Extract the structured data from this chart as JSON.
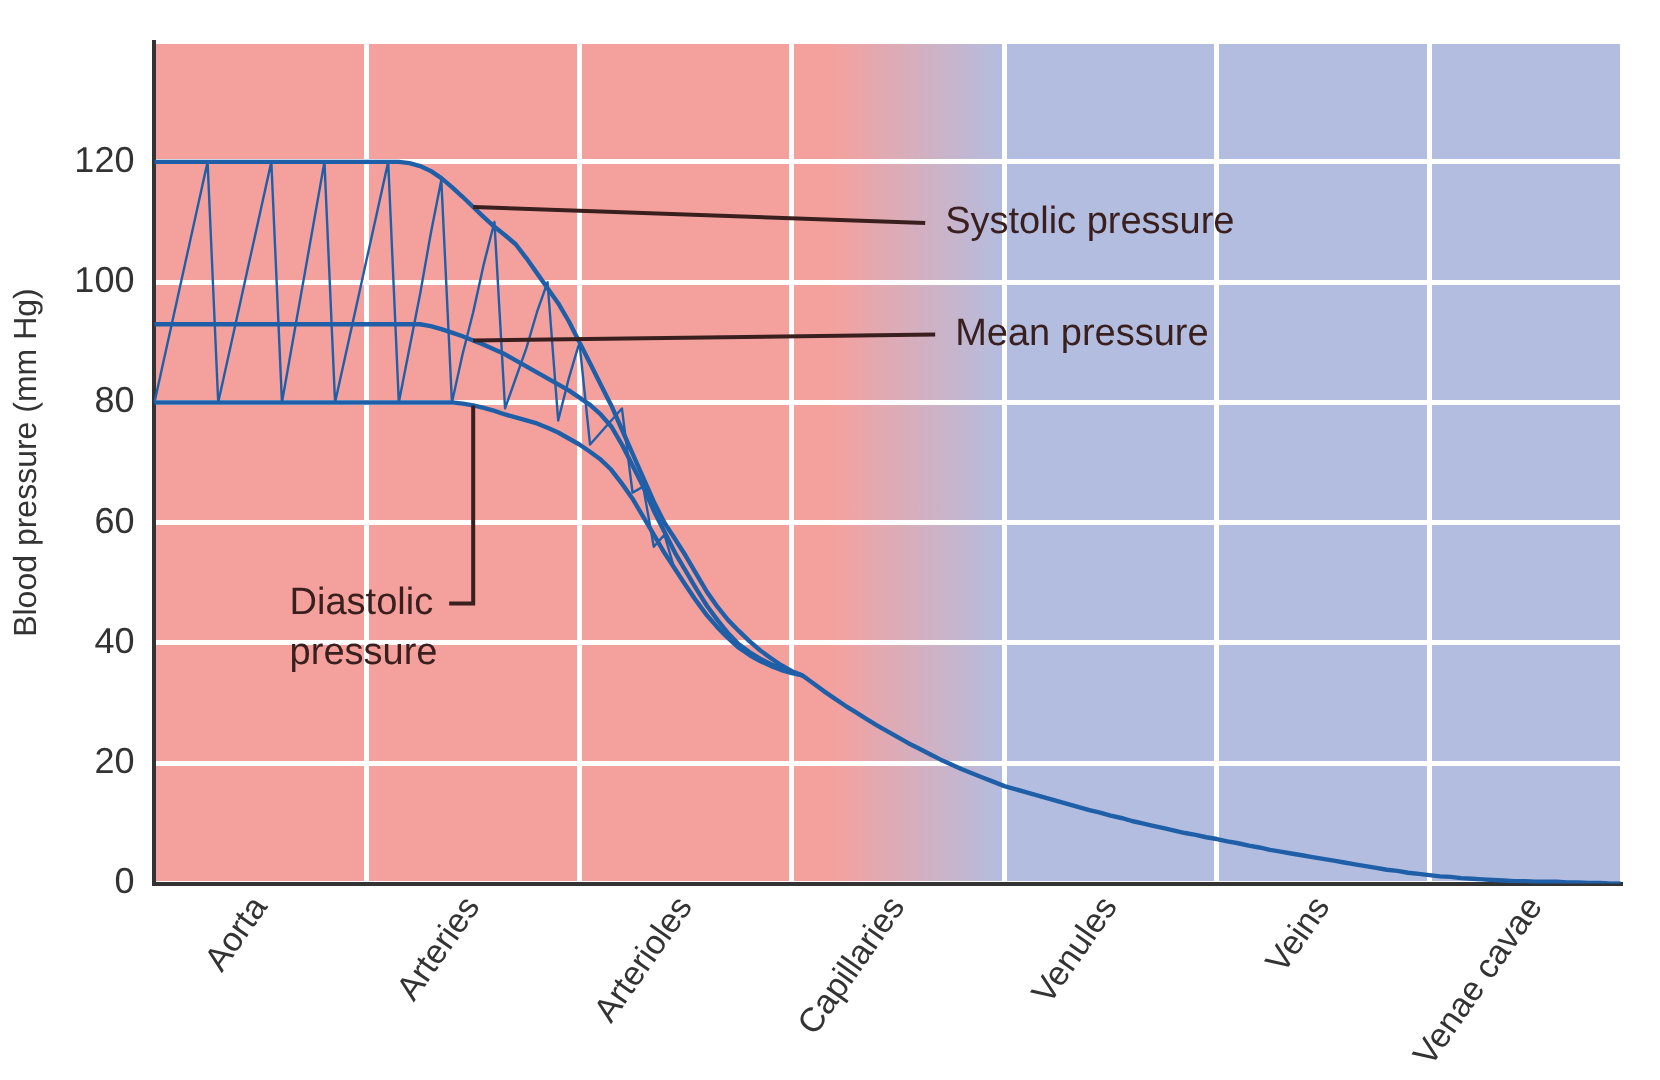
{
  "chart_data": {
    "type": "line",
    "ylabel": "Blood pressure (mm Hg)",
    "categories": [
      null,
      null,
      null,
      null,
      null,
      null,
      null,
      null,
      null,
      null,
      "Aorta",
      null,
      null,
      null,
      null,
      null,
      null,
      null,
      null,
      null,
      null,
      null,
      null,
      null,
      null,
      null,
      null,
      null,
      null,
      null,
      "Arteries",
      null,
      null,
      null,
      null,
      null,
      null,
      null,
      null,
      null,
      null,
      null,
      null,
      null,
      null,
      null,
      null,
      null,
      null,
      null,
      "Arterioles",
      null,
      null,
      null,
      null,
      null,
      null,
      null,
      null,
      null,
      null,
      null,
      null,
      null,
      null,
      null,
      null,
      null,
      null,
      null,
      "Capillaries",
      null,
      null,
      null,
      null,
      null,
      null,
      null,
      null,
      null,
      null,
      null,
      null,
      null,
      null,
      null,
      null,
      null,
      null,
      null,
      "Venules",
      null,
      null,
      null,
      null,
      null,
      null,
      null,
      null,
      null,
      null,
      null,
      null,
      null,
      null,
      null,
      null,
      null,
      null,
      null,
      "Veins",
      null,
      null,
      null,
      null,
      null,
      null,
      null,
      null,
      null,
      null,
      null,
      null,
      null,
      null,
      null,
      null,
      null,
      null,
      null,
      "Venae cavae",
      null,
      null,
      null,
      null,
      null,
      null,
      null,
      null
    ],
    "ylim": [
      0,
      140
    ],
    "yticks": [
      0,
      20,
      40,
      60,
      80,
      100,
      120,
      {
        "value": 140,
        "label": null
      }
    ],
    "grid": true,
    "legend": false,
    "marker": "none",
    "line_style": "solid",
    "series": [
      {
        "color": "#1f5fa8",
        "values": [
          120,
          120,
          120,
          120,
          120,
          120,
          120,
          120,
          120,
          120,
          120,
          120,
          120,
          120,
          120,
          120,
          120,
          120,
          120,
          120,
          120,
          120,
          120,
          120,
          119.8,
          119.3,
          118.5,
          117.3,
          115.8,
          114.2,
          112.5,
          110.8,
          109.2,
          107.8,
          106.3,
          104,
          101.5,
          99,
          96.5,
          93.5,
          90,
          86.5,
          83,
          79.5,
          75.5,
          71.5,
          67.5,
          63.5,
          60,
          57.3,
          54.5,
          51.5,
          48.5,
          46,
          43.8,
          42,
          40.3,
          38.8,
          37.5,
          36.3,
          35.3,
          34.6,
          33.3,
          32,
          30.8,
          29.6,
          28.5,
          27.4,
          26.3,
          25.3,
          24.3,
          23.3,
          22.4,
          21.5,
          20.6,
          19.8,
          19,
          18.3,
          17.6,
          16.9,
          16.2,
          15.7,
          15.2,
          14.7,
          14.2,
          13.7,
          13.2,
          12.7,
          12.2,
          11.8,
          11.3,
          10.9,
          10.4,
          10,
          9.6,
          9.2,
          8.8,
          8.4,
          8.1,
          7.7,
          7.4,
          7,
          6.7,
          6.3,
          6,
          5.6,
          5.3,
          5,
          4.7,
          4.4,
          4.1,
          3.8,
          3.5,
          3.2,
          2.9,
          2.6,
          2.3,
          2.1,
          1.8,
          1.6,
          1.4,
          1.2,
          1.1,
          0.9,
          0.8,
          0.7,
          0.6,
          0.5,
          0.4,
          0.4,
          0.3,
          0.3,
          0.3,
          0.2,
          0.2,
          0.1,
          0.1,
          0,
          0
        ]
      },
      {
        "color": "#1f5fa8",
        "values": [
          93,
          93,
          93,
          93,
          93,
          93,
          93,
          93,
          93,
          93,
          93,
          93,
          93,
          93,
          93,
          93,
          93,
          93,
          93,
          93,
          93,
          93,
          93,
          93,
          93,
          93,
          92.7,
          92.2,
          91.6,
          91,
          90.3,
          89.6,
          88.8,
          88,
          87,
          86,
          85,
          84,
          83,
          82,
          80.8,
          79.6,
          78,
          76,
          73,
          69.5,
          66,
          62,
          58.5,
          55,
          52,
          49,
          46.2,
          43.8,
          41.6,
          39.8,
          38.5,
          37.4,
          36.5,
          35.8,
          35.2,
          34.6,
          null,
          null,
          null,
          null,
          null,
          null,
          null,
          null,
          null,
          null,
          null,
          null,
          null,
          null,
          null,
          null,
          null,
          null,
          null,
          null,
          null,
          null,
          null,
          null,
          null,
          null,
          null,
          null,
          null,
          null,
          null,
          null,
          null,
          null,
          null,
          null,
          null,
          null,
          null,
          null,
          null,
          null,
          null,
          null,
          null,
          null,
          null,
          null,
          null,
          null,
          null,
          null,
          null,
          null,
          null,
          null,
          null,
          null,
          null,
          null,
          null,
          null,
          null,
          null,
          null,
          null,
          null,
          null,
          null,
          null,
          null,
          null,
          null,
          null,
          null,
          null,
          null
        ]
      },
      {
        "color": "#1f5fa8",
        "values": [
          80,
          80,
          80,
          80,
          80,
          80,
          80,
          80,
          80,
          80,
          80,
          80,
          80,
          80,
          80,
          80,
          80,
          80,
          80,
          80,
          80,
          80,
          80,
          80,
          80,
          80,
          80,
          80,
          80,
          79.8,
          79.5,
          79.1,
          78.6,
          78,
          77.5,
          77,
          76.5,
          75.8,
          75,
          74,
          73,
          71.8,
          70.5,
          68.8,
          66.5,
          64,
          61,
          58,
          55,
          52.3,
          49.6,
          47,
          44.6,
          42.6,
          40.8,
          39.2,
          38,
          37,
          36.2,
          35.5,
          35,
          34.6,
          null,
          null,
          null,
          null,
          null,
          null,
          null,
          null,
          null,
          null,
          null,
          null,
          null,
          null,
          null,
          null,
          null,
          null,
          null,
          null,
          null,
          null,
          null,
          null,
          null,
          null,
          null,
          null,
          null,
          null,
          null,
          null,
          null,
          null,
          null,
          null,
          null,
          null,
          null,
          null,
          null,
          null,
          null,
          null,
          null,
          null,
          null,
          null,
          null,
          null,
          null,
          null,
          null,
          null,
          null,
          null,
          null,
          null,
          null,
          null,
          null,
          null,
          null,
          null,
          null,
          null,
          null,
          null,
          null,
          null,
          null,
          null,
          null,
          null,
          null,
          null,
          null
        ]
      },
      {
        "color": "#1f5fa8",
        "values": [
          80,
          88,
          96,
          104,
          112,
          120,
          80,
          88,
          96,
          104,
          112,
          120,
          80,
          90,
          100,
          110,
          120,
          80,
          88,
          96,
          104,
          112,
          120,
          80,
          89,
          98,
          108,
          117,
          80,
          88,
          95,
          103,
          110,
          79,
          84,
          89,
          95,
          100,
          77,
          84,
          90,
          73,
          75,
          77,
          79,
          65,
          66,
          56,
          58,
          52,
          null,
          null,
          null,
          null,
          null,
          null,
          null,
          null,
          null,
          null,
          null,
          null,
          null,
          null,
          null,
          null,
          null,
          null,
          null,
          null,
          null,
          null,
          null,
          null,
          null,
          null,
          null,
          null,
          null,
          null,
          null,
          null,
          null,
          null,
          null,
          null,
          null,
          null,
          null,
          null,
          null,
          null,
          null,
          null,
          null,
          null,
          null,
          null,
          null,
          null,
          null,
          null,
          null,
          null,
          null,
          null,
          null,
          null,
          null,
          null,
          null,
          null,
          null,
          null,
          null,
          null,
          null,
          null,
          null,
          null,
          null,
          null,
          null,
          null,
          null,
          null,
          null,
          null,
          null,
          null,
          null,
          null,
          null,
          null,
          null,
          null,
          null,
          null,
          null
        ]
      }
    ],
    "annotations": [
      {
        "text": "Systolic pressure",
        "x": "Arteries",
        "y": 112.5
      },
      {
        "text": "Mean pressure",
        "x": "Arteries",
        "y": 90.3
      },
      {
        "text": "Diastolic pressure",
        "x": "Arteries",
        "y": 79.5
      }
    ]
  }
}
